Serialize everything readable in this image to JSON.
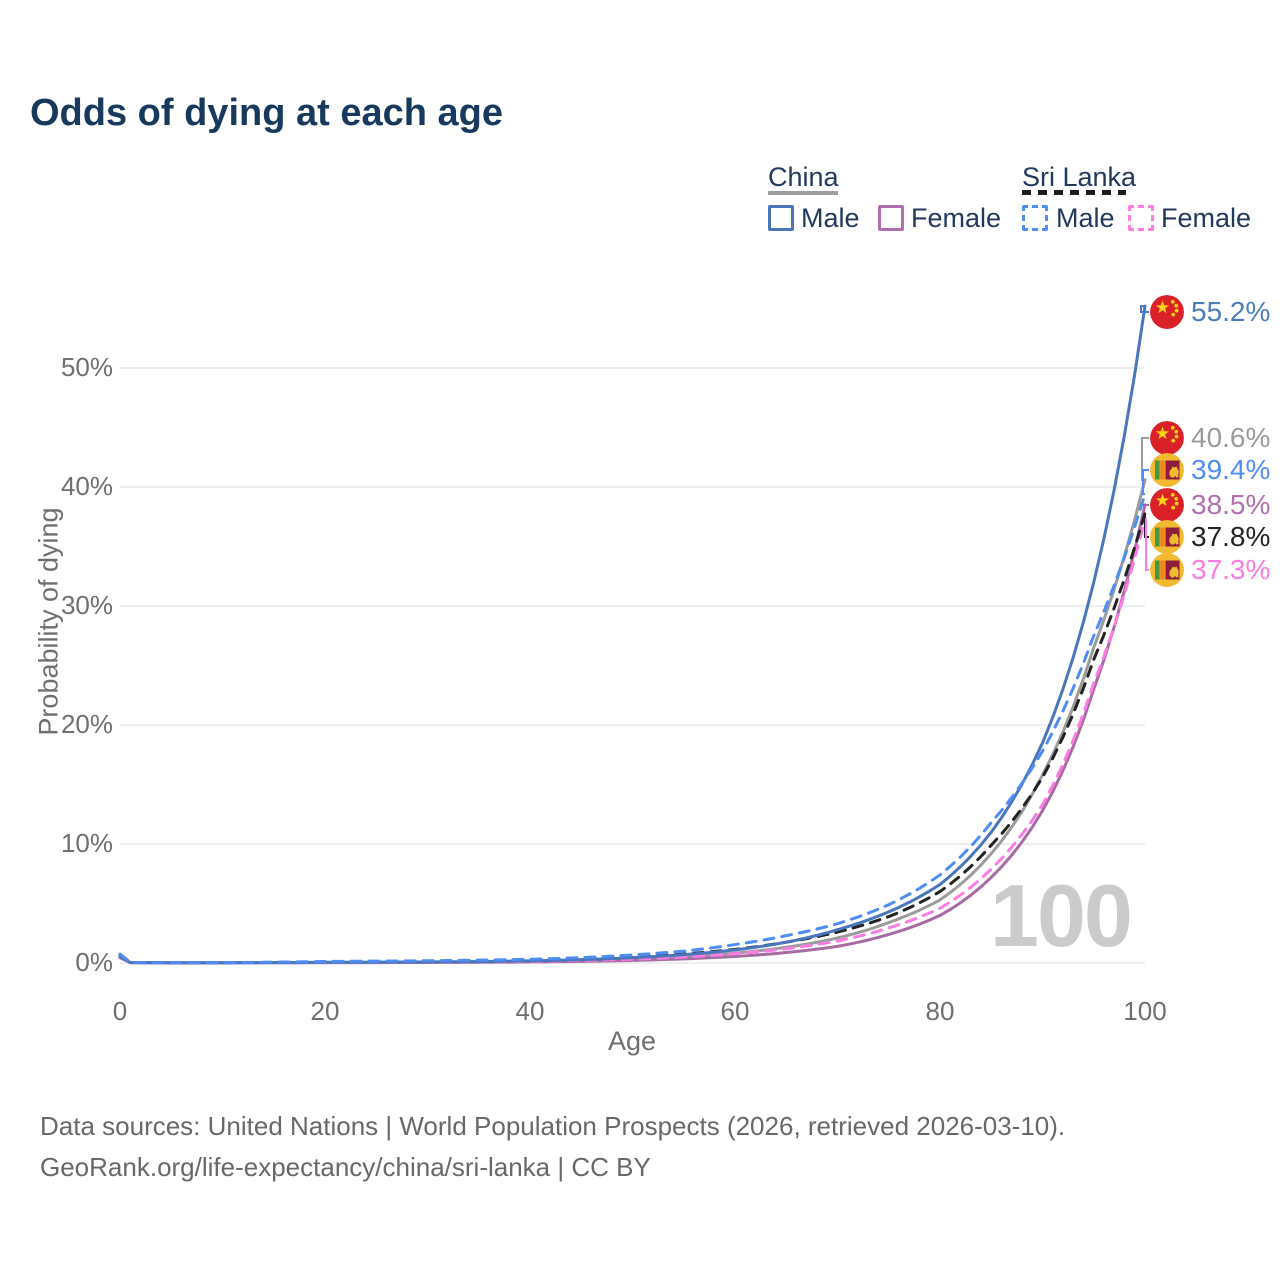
{
  "title": "Odds of dying at each age",
  "watermark": "100",
  "legend": {
    "groups": [
      {
        "id": "china",
        "label": "China",
        "line_style": "solid",
        "underline_color": "#9e9e9e",
        "items": [
          {
            "label": "Male",
            "color": "#4a76bb"
          },
          {
            "label": "Female",
            "color": "#b06fae"
          }
        ]
      },
      {
        "id": "sri-lanka",
        "label": "Sri Lanka",
        "line_style": "dashed",
        "underline_color": "#1c1c1c",
        "items": [
          {
            "label": "Male",
            "color": "#4f8df5"
          },
          {
            "label": "Female",
            "color": "#fc7ce0"
          }
        ]
      }
    ]
  },
  "axes": {
    "x": {
      "label": "Age",
      "ticks": [
        "0",
        "20",
        "40",
        "60",
        "80",
        "100"
      ],
      "tick_values": [
        0,
        20,
        40,
        60,
        80,
        100
      ],
      "range": [
        0,
        100
      ]
    },
    "y": {
      "label": "Probability of dying",
      "ticks": [
        "0%",
        "10%",
        "20%",
        "30%",
        "40%",
        "50%"
      ],
      "tick_values": [
        0,
        10,
        20,
        30,
        40,
        50
      ],
      "range": [
        0,
        55.5
      ]
    }
  },
  "chart_data": {
    "type": "line",
    "title": "Odds of dying at each age",
    "xlabel": "Age",
    "ylabel": "Probability of dying",
    "x": [
      0,
      1,
      5,
      10,
      15,
      20,
      25,
      30,
      35,
      40,
      45,
      50,
      55,
      60,
      65,
      70,
      75,
      80,
      85,
      90,
      95,
      100
    ],
    "unit": "percent",
    "grid": "horizontal",
    "legend_position": "top-right",
    "series": [
      {
        "id": "china-total",
        "country": "China",
        "sex": "Total",
        "color": "#9b9b9b",
        "label_color": "#9b9b9b",
        "dash": null,
        "flag": "cn",
        "end_label": "40.6%",
        "values": [
          0.5,
          0.035,
          0.018,
          0.018,
          0.03,
          0.045,
          0.055,
          0.07,
          0.09,
          0.14,
          0.21,
          0.34,
          0.53,
          0.83,
          1.32,
          2.1,
          3.4,
          5.3,
          9.2,
          15.8,
          26.5,
          40.6
        ]
      },
      {
        "id": "china-female",
        "country": "China",
        "sex": "Female",
        "color": "#a76ba3",
        "label_color": "#b06fae",
        "dash": null,
        "flag": "cn",
        "end_label": "38.5%",
        "values": [
          0.45,
          0.03,
          0.015,
          0.015,
          0.02,
          0.03,
          0.035,
          0.045,
          0.06,
          0.09,
          0.14,
          0.22,
          0.35,
          0.55,
          0.88,
          1.4,
          2.4,
          4.0,
          7.2,
          12.8,
          23.0,
          38.5
        ]
      },
      {
        "id": "sri-lanka-female",
        "country": "Sri Lanka",
        "sex": "Female",
        "color": "#fb7ce4",
        "label_color": "#fb7ce4",
        "dash": "10 8",
        "flag": "lk",
        "end_label": "37.3%",
        "values": [
          0.6,
          0.04,
          0.02,
          0.02,
          0.03,
          0.05,
          0.06,
          0.075,
          0.1,
          0.14,
          0.21,
          0.32,
          0.5,
          0.78,
          1.2,
          1.85,
          2.95,
          4.6,
          7.9,
          13.3,
          23.5,
          37.3
        ]
      },
      {
        "id": "sri-lanka-total",
        "country": "Sri Lanka",
        "sex": "Total",
        "color": "#232323",
        "label_color": "#232323",
        "dash": "10 8",
        "flag": "lk",
        "end_label": "37.8%",
        "values": [
          0.68,
          0.045,
          0.025,
          0.025,
          0.05,
          0.09,
          0.11,
          0.13,
          0.17,
          0.23,
          0.33,
          0.5,
          0.75,
          1.15,
          1.75,
          2.6,
          3.9,
          6.0,
          9.9,
          15.6,
          25.5,
          37.8
        ]
      },
      {
        "id": "china-male",
        "country": "China",
        "sex": "Male",
        "color": "#4a76bb",
        "label_color": "#4a7ebb",
        "dash": null,
        "flag": "cn",
        "end_label": "55.2%",
        "values": [
          0.55,
          0.04,
          0.02,
          0.02,
          0.04,
          0.06,
          0.07,
          0.09,
          0.12,
          0.18,
          0.28,
          0.45,
          0.7,
          1.1,
          1.75,
          2.8,
          4.3,
          6.6,
          11.0,
          18.5,
          32.0,
          55.2
        ]
      },
      {
        "id": "sri-lanka-male",
        "country": "Sri Lanka",
        "sex": "Male",
        "color": "#4f8df5",
        "label_color": "#4f8df5",
        "dash": "10 8",
        "flag": "lk",
        "end_label": "39.4%",
        "values": [
          0.75,
          0.05,
          0.03,
          0.03,
          0.07,
          0.13,
          0.16,
          0.19,
          0.24,
          0.31,
          0.45,
          0.68,
          1.0,
          1.55,
          2.3,
          3.3,
          4.9,
          7.4,
          11.8,
          17.8,
          27.5,
          39.4
        ]
      }
    ]
  },
  "source": {
    "line1": "Data sources: United Nations | World Population Prospects (2026, retrieved 2026-03-10).",
    "line2": "GeoRank.org/life-expectancy/china/sri-lanka | CC BY"
  }
}
